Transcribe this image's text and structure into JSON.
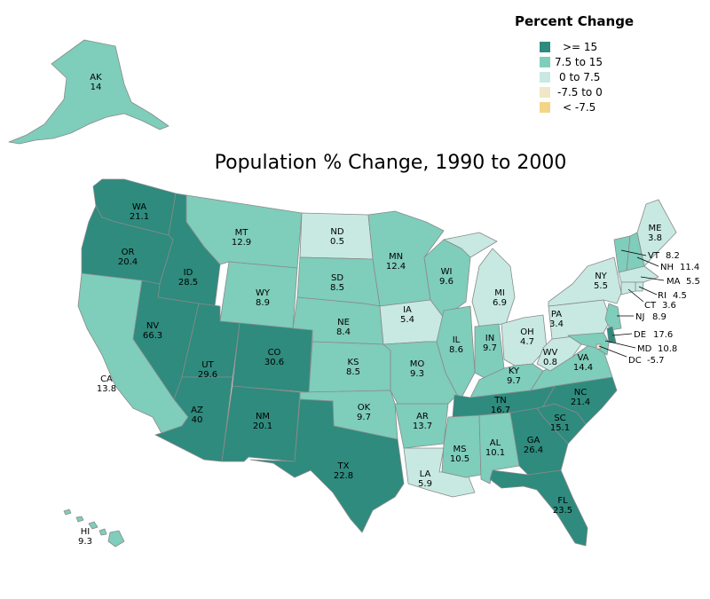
{
  "title": "Population % Change, 1990 to 2000",
  "legend": {
    "title": "Percent Change",
    "items": [
      {
        "label": ">= 15",
        "color": "#2e8b7e"
      },
      {
        "label": "7.5 to 15",
        "color": "#7fcdbb"
      },
      {
        "label": "0 to 7.5",
        "color": "#c7e9e2"
      },
      {
        "label": "-7.5 to 0",
        "color": "#f0e6c8"
      },
      {
        "label": "< -7.5",
        "color": "#f4d588"
      }
    ]
  },
  "chart_data": {
    "type": "choropleth",
    "regions": [
      {
        "id": "AK",
        "value": "14"
      },
      {
        "id": "WA",
        "value": "21.1"
      },
      {
        "id": "OR",
        "value": "20.4"
      },
      {
        "id": "CA",
        "value": "13.8"
      },
      {
        "id": "ID",
        "value": "28.5"
      },
      {
        "id": "NV",
        "value": "66.3"
      },
      {
        "id": "MT",
        "value": "12.9"
      },
      {
        "id": "WY",
        "value": "8.9"
      },
      {
        "id": "UT",
        "value": "29.6"
      },
      {
        "id": "AZ",
        "value": "40"
      },
      {
        "id": "CO",
        "value": "30.6"
      },
      {
        "id": "NM",
        "value": "20.1"
      },
      {
        "id": "ND",
        "value": "0.5"
      },
      {
        "id": "SD",
        "value": "8.5"
      },
      {
        "id": "NE",
        "value": "8.4"
      },
      {
        "id": "KS",
        "value": "8.5"
      },
      {
        "id": "OK",
        "value": "9.7"
      },
      {
        "id": "TX",
        "value": "22.8"
      },
      {
        "id": "MN",
        "value": "12.4"
      },
      {
        "id": "IA",
        "value": "5.4"
      },
      {
        "id": "MO",
        "value": "9.3"
      },
      {
        "id": "AR",
        "value": "13.7"
      },
      {
        "id": "LA",
        "value": "5.9"
      },
      {
        "id": "WI",
        "value": "9.6"
      },
      {
        "id": "IL",
        "value": "8.6"
      },
      {
        "id": "MI",
        "value": "6.9"
      },
      {
        "id": "IN",
        "value": "9.7"
      },
      {
        "id": "OH",
        "value": "4.7"
      },
      {
        "id": "KY",
        "value": "9.7"
      },
      {
        "id": "TN",
        "value": "16.7"
      },
      {
        "id": "MS",
        "value": "10.5"
      },
      {
        "id": "AL",
        "value": "10.1"
      },
      {
        "id": "GA",
        "value": "26.4"
      },
      {
        "id": "FL",
        "value": "23.5"
      },
      {
        "id": "SC",
        "value": "15.1"
      },
      {
        "id": "NC",
        "value": "21.4"
      },
      {
        "id": "VA",
        "value": "14.4"
      },
      {
        "id": "WV",
        "value": "0.8"
      },
      {
        "id": "PA",
        "value": "3.4"
      },
      {
        "id": "NY",
        "value": "5.5"
      },
      {
        "id": "ME",
        "value": "3.8"
      },
      {
        "id": "VT",
        "value": "8.2"
      },
      {
        "id": "NH",
        "value": "11.4"
      },
      {
        "id": "MA",
        "value": "5.5"
      },
      {
        "id": "RI",
        "value": "4.5"
      },
      {
        "id": "CT",
        "value": "3.6"
      },
      {
        "id": "NJ",
        "value": "8.9"
      },
      {
        "id": "DE",
        "value": "17.6"
      },
      {
        "id": "MD",
        "value": "10.8"
      },
      {
        "id": "DC",
        "value": "-5.7"
      },
      {
        "id": "HI",
        "value": "9.3"
      }
    ]
  }
}
